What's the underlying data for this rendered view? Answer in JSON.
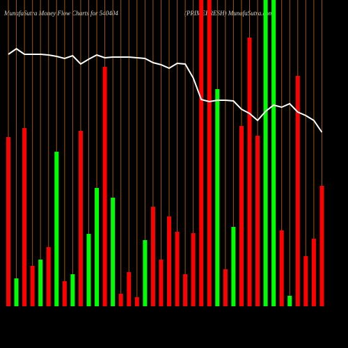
{
  "chart_data": {
    "type": "bar",
    "title": "MunafaSutra  Money  Flow  Charts for 540404",
    "subtitle": "(PRIMEFRESH) MunafaSutra.com",
    "categories": [
      null,
      null,
      null,
      null,
      null,
      null,
      null,
      null,
      null,
      null,
      null,
      null,
      null,
      null,
      null,
      null,
      null,
      null,
      null,
      null,
      null,
      null,
      null,
      null,
      null,
      null,
      null,
      null,
      null,
      null,
      null,
      null,
      null,
      null,
      null,
      null,
      null,
      null,
      null,
      null
    ],
    "ylim": [
      0,
      440
    ],
    "grid": true,
    "grid_color": "#a05a00",
    "series": [
      {
        "type": "bar",
        "values": [
          243,
          40,
          256,
          58,
          67,
          85,
          222,
          36,
          46,
          252,
          104,
          170,
          344,
          156,
          18,
          49,
          13,
          95,
          143,
          67,
          129,
          107,
          46,
          105,
          440,
          440,
          312,
          53,
          114,
          259,
          386,
          245,
          440,
          440,
          109,
          15,
          331,
          72,
          97,
          173
        ],
        "colors": [
          "#ff0000",
          "#00ff00",
          "#ff0000",
          "#ff0000",
          "#00ff00",
          "#ff0000",
          "#00ff00",
          "#ff0000",
          "#00ff00",
          "#ff0000",
          "#00ff00",
          "#00ff00",
          "#ff0000",
          "#00ff00",
          "#ff0000",
          "#ff0000",
          "#ff0000",
          "#00ff00",
          "#ff0000",
          "#ff0000",
          "#ff0000",
          "#ff0000",
          "#ff0000",
          "#ff0000",
          "#ff0000",
          "#ff0000",
          "#00ff00",
          "#ff0000",
          "#00ff00",
          "#ff0000",
          "#ff0000",
          "#ff0000",
          "#00ff00",
          "#00ff00",
          "#ff0000",
          "#00ff00",
          "#ff0000",
          "#ff0000",
          "#ff0000",
          "#ff0000"
        ]
      },
      {
        "type": "line",
        "color": "#ffffff",
        "values": [
          362,
          370,
          362,
          362,
          362,
          361,
          359,
          356,
          360,
          348,
          355,
          361,
          357,
          358,
          358,
          358,
          357,
          356,
          350,
          347,
          342,
          349,
          348,
          328,
          297,
          294,
          296,
          296,
          295,
          283,
          277,
          267,
          280,
          289,
          286,
          291,
          279,
          274,
          267,
          250
        ]
      }
    ]
  }
}
